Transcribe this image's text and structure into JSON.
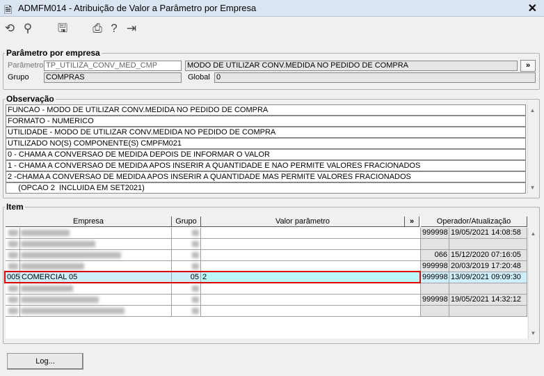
{
  "window": {
    "title": "ADMFM014 - Atribuição de Valor a Parâmetro por Empresa",
    "close": "✕"
  },
  "toolbar": [
    "undo-icon",
    "search-icon",
    "save-icon",
    "print-icon",
    "help-icon",
    "exit-icon"
  ],
  "parametro": {
    "legend": "Parâmetro por empresa",
    "param_label": "Parâmetro",
    "param_value": "TP_UTILIZA_CONV_MED_CMP",
    "desc_value": "MODO DE UTILIZAR CONV.MEDIDA NO PEDIDO DE COMPRA",
    "more": "»",
    "grupo_label": "Grupo",
    "grupo_value": "COMPRAS",
    "global_label": "Global",
    "global_value": "0"
  },
  "observacao": {
    "legend": "Observação",
    "lines": [
      "FUNCAO - MODO DE UTILIZAR CONV.MEDIDA NO PEDIDO DE COMPRA",
      "FORMATO - NUMERICO",
      "UTILIDADE - MODO DE UTILIZAR CONV.MEDIDA NO PEDIDO DE COMPRA",
      "UTILIZADO NO(S) COMPONENTE(S) CMPFM021",
      "0 - CHAMA A CONVERSAO DE MEDIDA DEPOIS DE INFORMAR O VALOR",
      "1 - CHAMA A CONVERSAO DE MEDIDA APOS INSERIR A QUANTIDADE E NAO PERMITE VALORES FRACIONADOS",
      "2 -CHAMA A CONVERSAO DE MEDIDA APOS INSERIR A QUANTIDADE MAS PERMITE VALORES FRACIONADOS",
      "     (OPCAO 2  INCLUIDA EM SET2021)"
    ]
  },
  "item": {
    "legend": "Item",
    "headers": {
      "empresa": "Empresa",
      "grupo": "Grupo",
      "valor": "Valor parâmetro",
      "more": "»",
      "operador": "Operador/Atualização"
    },
    "rows": [
      {
        "code": "",
        "name": "",
        "grupo": "",
        "valor": "",
        "operador": "999998",
        "data": "19/05/2021 14:08:58",
        "blurred": true
      },
      {
        "code": "",
        "name": "",
        "grupo": "",
        "valor": "",
        "operador": "",
        "data": "",
        "blurred": true
      },
      {
        "code": "",
        "name": "",
        "grupo": "",
        "valor": "",
        "operador": "066",
        "data": "15/12/2020 07:16:05",
        "blurred": true
      },
      {
        "code": "",
        "name": "",
        "grupo": "",
        "valor": "",
        "operador": "999998",
        "data": "20/03/2019 17:20:48",
        "blurred": true
      },
      {
        "code": "005",
        "name": "COMERCIAL 05",
        "grupo": "05",
        "valor": "2",
        "operador": "999998",
        "data": "13/09/2021 09:09:30",
        "blurred": false,
        "selected": true
      },
      {
        "code": "",
        "name": "",
        "grupo": "",
        "valor": "",
        "operador": "",
        "data": "",
        "blurred": true
      },
      {
        "code": "",
        "name": "",
        "grupo": "",
        "valor": "",
        "operador": "999998",
        "data": "19/05/2021 14:32:12",
        "blurred": true
      },
      {
        "code": "",
        "name": "",
        "grupo": "",
        "valor": "",
        "operador": "",
        "data": "",
        "blurred": true
      }
    ]
  },
  "footer": {
    "log_button": "Log..."
  },
  "colors": {
    "selected_row": "#cdeefa",
    "selected_valor": "#b8f8f8",
    "highlight_border": "#e00000"
  }
}
